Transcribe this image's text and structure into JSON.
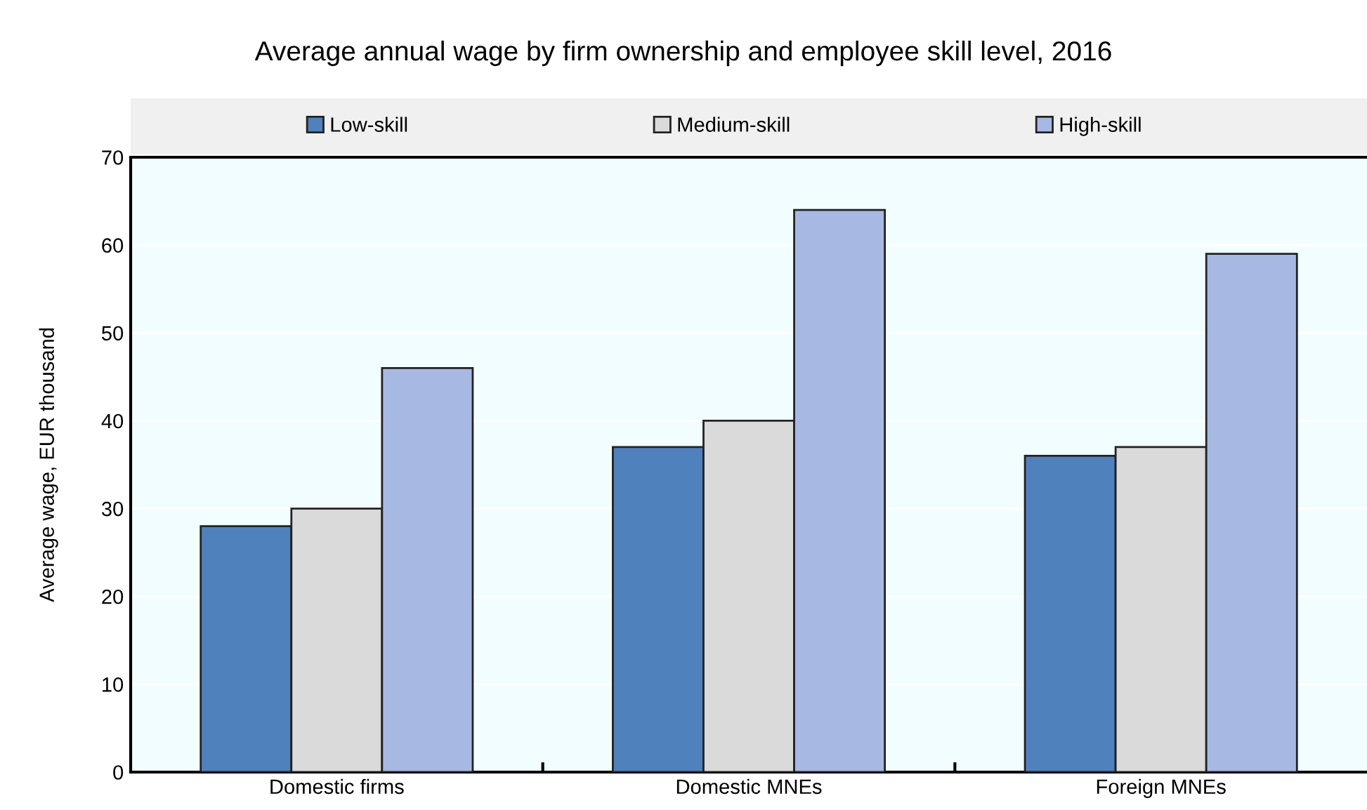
{
  "chart_data": {
    "type": "bar",
    "title": "Average annual wage by firm ownership and employee skill level, 2016",
    "ylabel": "Average wage, EUR thousand",
    "categories": [
      "Domestic firms",
      "Domestic MNEs",
      "Foreign MNEs"
    ],
    "series": [
      {
        "name": "Low-skill",
        "color": "#4f81bd",
        "values": [
          28,
          37,
          36
        ]
      },
      {
        "name": "Medium-skill",
        "color": "#dadada",
        "values": [
          30,
          40,
          37
        ]
      },
      {
        "name": "High-skill",
        "color": "#a7b9e3",
        "values": [
          46,
          64,
          59
        ]
      }
    ],
    "ylim": [
      0,
      70
    ],
    "yticks": [
      0,
      10,
      20,
      30,
      40,
      50,
      60,
      70
    ],
    "grid": "y",
    "legend": "top"
  }
}
